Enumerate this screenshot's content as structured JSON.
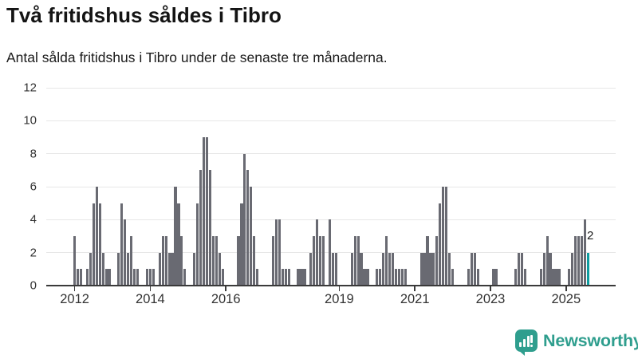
{
  "title": "Två fritidshus såldes i Tibro",
  "subtitle": "Antal sålda fritidshus i Tibro under de senaste tre månaderna.",
  "chart_data": {
    "type": "bar",
    "title": "Två fritidshus såldes i Tibro",
    "subtitle": "Antal sålda fritidshus i Tibro under de senaste tre månaderna.",
    "x_start": "2012-01",
    "x_end": "2025-08",
    "x_granularity": "month",
    "ylim": [
      0,
      12
    ],
    "yticks": [
      0,
      2,
      4,
      6,
      8,
      10,
      12
    ],
    "grid": true,
    "values": [
      3,
      1,
      1,
      0,
      1,
      2,
      5,
      6,
      5,
      2,
      1,
      1,
      0,
      0,
      2,
      5,
      4,
      2,
      3,
      1,
      1,
      0,
      0,
      1,
      1,
      1,
      0,
      2,
      3,
      3,
      2,
      2,
      6,
      5,
      3,
      1,
      0,
      0,
      2,
      5,
      7,
      9,
      9,
      7,
      3,
      3,
      2,
      1,
      0,
      0,
      0,
      0,
      3,
      5,
      8,
      7,
      6,
      3,
      1,
      0,
      0,
      0,
      0,
      3,
      4,
      4,
      1,
      1,
      1,
      0,
      0,
      1,
      1,
      1,
      0,
      2,
      3,
      4,
      3,
      3,
      0,
      4,
      2,
      2,
      0,
      0,
      0,
      0,
      2,
      3,
      3,
      2,
      1,
      1,
      0,
      0,
      1,
      1,
      2,
      3,
      2,
      2,
      1,
      1,
      1,
      1,
      0,
      0,
      0,
      0,
      2,
      2,
      3,
      2,
      2,
      3,
      5,
      6,
      6,
      2,
      1,
      0,
      0,
      0,
      0,
      1,
      2,
      2,
      1,
      0,
      0,
      0,
      0,
      1,
      1,
      0,
      0,
      0,
      0,
      0,
      1,
      2,
      2,
      1,
      0,
      0,
      0,
      0,
      1,
      2,
      3,
      2,
      1,
      1,
      1,
      0,
      0,
      1,
      2,
      3,
      3,
      3,
      4,
      2
    ],
    "xticks": [
      {
        "label": "2012",
        "month_index": 0
      },
      {
        "label": "2014",
        "month_index": 24
      },
      {
        "label": "2016",
        "month_index": 48
      },
      {
        "label": "2019",
        "month_index": 84
      },
      {
        "label": "2021",
        "month_index": 108
      },
      {
        "label": "2023",
        "month_index": 132
      },
      {
        "label": "2025",
        "month_index": 156
      }
    ],
    "highlight": {
      "index": "last",
      "value_label": "2"
    },
    "colors": {
      "bar": "#696a72",
      "highlight_bar": "#0e9c9f",
      "grid": "#e7e7e7",
      "axis": "#3a3a3a",
      "text": "#333333"
    }
  },
  "annotation": {
    "label": "2"
  },
  "branding": {
    "logo_text": "Newsworthy",
    "logo_color": "#2f9e8e"
  }
}
